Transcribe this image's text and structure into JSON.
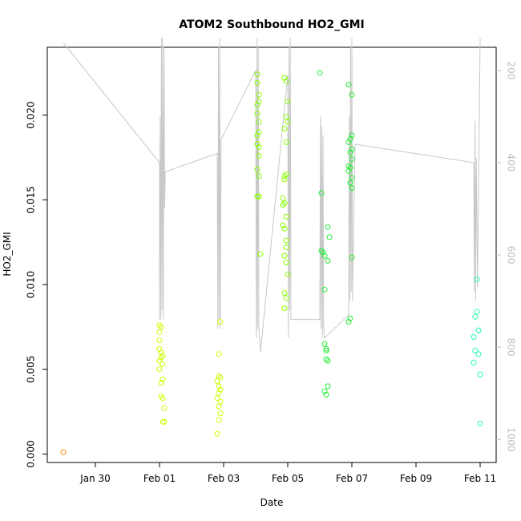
{
  "chart_data": {
    "type": "scatter",
    "title": "ATOM2 Southbound HO2_GMI",
    "xlabel": "Date",
    "ylabel": "HO2_GMI",
    "x_ticks": [
      "Jan 30",
      "Feb 01",
      "Feb 03",
      "Feb 05",
      "Feb 07",
      "Feb 09",
      "Feb 11"
    ],
    "y_ticks": [
      "0.000",
      "0.005",
      "0.010",
      "0.015",
      "0.020"
    ],
    "y_tick_values": [
      0,
      0.005,
      0.01,
      0.015,
      0.02
    ],
    "y_range": [
      -0.0005,
      0.024
    ],
    "x_range_days_from_jan30": [
      -1.5,
      12.5
    ],
    "right_axis": {
      "ticks": [
        "200",
        "400",
        "600",
        "800",
        "1000"
      ],
      "tick_values": [
        200,
        400,
        600,
        800,
        1000
      ],
      "range": [
        1050,
        150
      ],
      "color": "#bdbdbd"
    },
    "grid": false,
    "series": [
      {
        "color": "#ff8c00",
        "points": [
          [
            -1,
            0.0001
          ]
        ]
      },
      {
        "color": "#ccff00",
        "points": [
          [
            2.0,
            0.0076
          ],
          [
            2.05,
            0.0075
          ],
          [
            2.0,
            0.0072
          ],
          [
            2.0,
            0.0067
          ],
          [
            2.0,
            0.0062
          ],
          [
            2.05,
            0.006
          ],
          [
            2.1,
            0.0058
          ],
          [
            2.05,
            0.0057
          ],
          [
            2.0,
            0.0055
          ],
          [
            2.1,
            0.0053
          ],
          [
            2.0,
            0.005
          ],
          [
            2.1,
            0.0044
          ],
          [
            2.05,
            0.0042
          ],
          [
            2.05,
            0.0034
          ],
          [
            2.1,
            0.0033
          ],
          [
            2.15,
            0.0027
          ],
          [
            2.1,
            0.0019
          ],
          [
            2.15,
            0.0019
          ],
          [
            3.9,
            0.0078
          ],
          [
            3.85,
            0.0059
          ],
          [
            3.85,
            0.0046
          ],
          [
            3.9,
            0.0045
          ],
          [
            3.8,
            0.0043
          ],
          [
            3.85,
            0.004
          ],
          [
            3.9,
            0.0038
          ],
          [
            3.85,
            0.0036
          ],
          [
            3.8,
            0.0033
          ],
          [
            3.9,
            0.0031
          ],
          [
            3.85,
            0.0028
          ],
          [
            3.9,
            0.0024
          ],
          [
            3.85,
            0.002
          ],
          [
            3.8,
            0.0012
          ]
        ]
      },
      {
        "color": "#88ff00",
        "points": [
          [
            5.05,
            0.0224
          ],
          [
            5.05,
            0.0219
          ],
          [
            5.1,
            0.0212
          ],
          [
            5.05,
            0.0206
          ],
          [
            5.1,
            0.0208
          ],
          [
            5.05,
            0.0201
          ],
          [
            5.1,
            0.0196
          ],
          [
            5.1,
            0.019
          ],
          [
            5.05,
            0.0188
          ],
          [
            5.1,
            0.0181
          ],
          [
            5.05,
            0.0183
          ],
          [
            5.1,
            0.0176
          ],
          [
            5.05,
            0.0168
          ],
          [
            5.1,
            0.0164
          ],
          [
            5.05,
            0.0152
          ],
          [
            5.1,
            0.0152
          ],
          [
            5.15,
            0.0118
          ],
          [
            5.9,
            0.0222
          ],
          [
            5.95,
            0.022
          ],
          [
            6.0,
            0.0208
          ],
          [
            5.95,
            0.0199
          ],
          [
            6.0,
            0.0196
          ],
          [
            5.9,
            0.0192
          ],
          [
            5.95,
            0.0184
          ],
          [
            5.9,
            0.0164
          ],
          [
            5.95,
            0.0165
          ],
          [
            5.9,
            0.0162
          ],
          [
            5.85,
            0.0151
          ],
          [
            5.9,
            0.0148
          ],
          [
            5.85,
            0.0147
          ],
          [
            5.95,
            0.014
          ],
          [
            5.85,
            0.0135
          ],
          [
            5.9,
            0.0133
          ],
          [
            5.95,
            0.0126
          ],
          [
            5.95,
            0.0122
          ],
          [
            5.9,
            0.0117
          ],
          [
            5.95,
            0.0113
          ],
          [
            6.0,
            0.0106
          ],
          [
            5.9,
            0.0095
          ],
          [
            5.95,
            0.0092
          ],
          [
            5.9,
            0.0086
          ]
        ]
      },
      {
        "color": "#22ee33",
        "points": [
          [
            7.0,
            0.0225
          ],
          [
            7.05,
            0.0154
          ],
          [
            7.25,
            0.0134
          ],
          [
            7.3,
            0.0128
          ],
          [
            7.05,
            0.012
          ],
          [
            7.1,
            0.0119
          ],
          [
            7.15,
            0.0117
          ],
          [
            7.25,
            0.0114
          ],
          [
            7.15,
            0.0097
          ],
          [
            7.15,
            0.0065
          ],
          [
            7.2,
            0.0062
          ],
          [
            7.2,
            0.0061
          ],
          [
            7.2,
            0.0056
          ],
          [
            7.25,
            0.0055
          ],
          [
            7.25,
            0.004
          ],
          [
            7.15,
            0.0037
          ],
          [
            7.2,
            0.0035
          ],
          [
            7.9,
            0.0218
          ],
          [
            8.0,
            0.0212
          ],
          [
            8.0,
            0.0188
          ],
          [
            7.95,
            0.0186
          ],
          [
            7.9,
            0.0184
          ],
          [
            8.0,
            0.018
          ],
          [
            7.95,
            0.0178
          ],
          [
            8.0,
            0.0174
          ],
          [
            7.9,
            0.017
          ],
          [
            7.95,
            0.0169
          ],
          [
            7.9,
            0.0167
          ],
          [
            8.0,
            0.0163
          ],
          [
            7.95,
            0.016
          ],
          [
            8.0,
            0.0157
          ],
          [
            8.0,
            0.0116
          ],
          [
            7.95,
            0.008
          ],
          [
            7.9,
            0.0078
          ]
        ]
      },
      {
        "color": "#22ffaa",
        "points": [
          [
            11.9,
            0.0103
          ],
          [
            11.9,
            0.0084
          ],
          [
            11.85,
            0.0081
          ],
          [
            11.95,
            0.0073
          ],
          [
            11.8,
            0.0069
          ],
          [
            11.85,
            0.0061
          ],
          [
            11.95,
            0.0059
          ],
          [
            11.8,
            0.0054
          ],
          [
            12.0,
            0.0047
          ],
          [
            12.0,
            0.0018
          ]
        ]
      }
    ],
    "pressure_trace": {
      "color": "#c8c8c8",
      "description_units": "hPa",
      "points": [
        [
          -1.0,
          140
        ],
        [
          2.0,
          400
        ],
        [
          2.0,
          740
        ],
        [
          2.02,
          300
        ],
        [
          2.04,
          740
        ],
        [
          2.06,
          130
        ],
        [
          2.08,
          720
        ],
        [
          2.1,
          130
        ],
        [
          2.12,
          740
        ],
        [
          2.14,
          150
        ],
        [
          2.16,
          500
        ],
        [
          2.18,
          420
        ],
        [
          3.8,
          380
        ],
        [
          3.82,
          760
        ],
        [
          3.84,
          150
        ],
        [
          3.86,
          740
        ],
        [
          3.88,
          130
        ],
        [
          3.9,
          760
        ],
        [
          3.92,
          350
        ],
        [
          5.0,
          200
        ],
        [
          5.02,
          780
        ],
        [
          5.04,
          130
        ],
        [
          5.06,
          760
        ],
        [
          5.08,
          150
        ],
        [
          5.1,
          760
        ],
        [
          5.15,
          810
        ],
        [
          6.0,
          210
        ],
        [
          6.02,
          780
        ],
        [
          6.04,
          150
        ],
        [
          6.06,
          720
        ],
        [
          6.08,
          130
        ],
        [
          6.1,
          740
        ],
        [
          7.0,
          740
        ],
        [
          7.02,
          300
        ],
        [
          7.04,
          760
        ],
        [
          7.06,
          320
        ],
        [
          7.08,
          780
        ],
        [
          7.1,
          340
        ],
        [
          7.12,
          760
        ],
        [
          7.15,
          780
        ],
        [
          7.9,
          730
        ],
        [
          7.92,
          300
        ],
        [
          7.94,
          700
        ],
        [
          7.96,
          150
        ],
        [
          7.98,
          680
        ],
        [
          8.0,
          130
        ],
        [
          8.02,
          700
        ],
        [
          8.05,
          560
        ],
        [
          8.1,
          360
        ],
        [
          11.8,
          400
        ],
        [
          11.82,
          680
        ],
        [
          11.84,
          310
        ],
        [
          11.86,
          700
        ],
        [
          11.88,
          390
        ],
        [
          11.92,
          670
        ],
        [
          12.0,
          130
        ]
      ]
    }
  }
}
